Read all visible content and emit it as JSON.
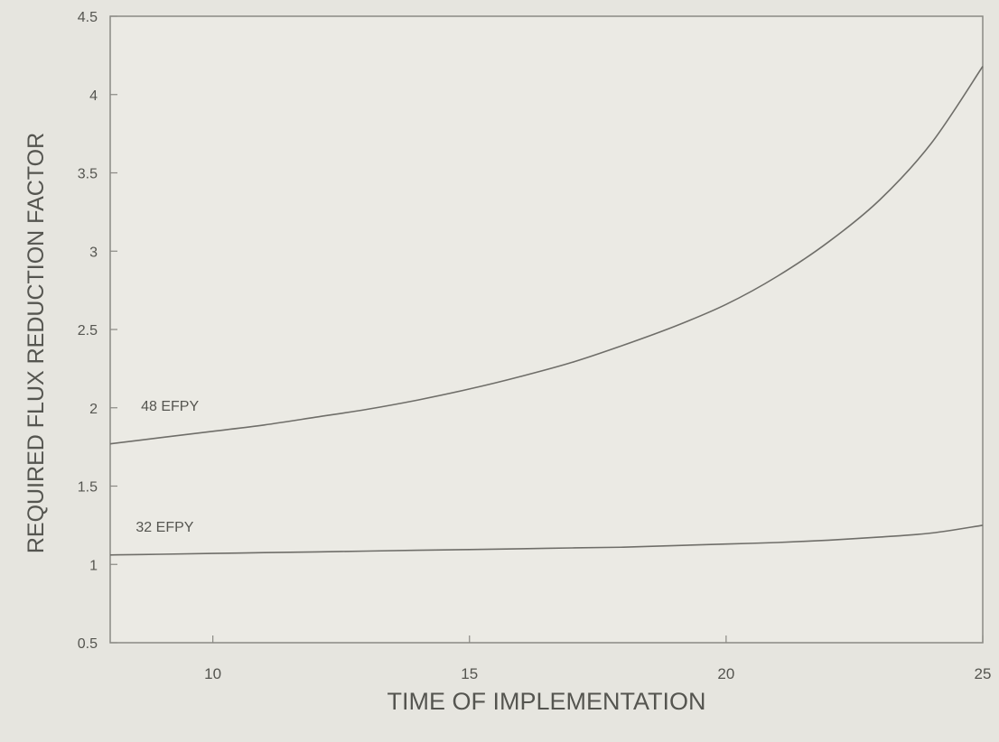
{
  "chart_data": {
    "type": "line",
    "title": "",
    "xlabel": "TIME OF IMPLEMENTATION",
    "ylabel": "REQUIRED FLUX REDUCTION FACTOR",
    "xlim": [
      8,
      25
    ],
    "ylim": [
      0.5,
      4.5
    ],
    "x_ticks": [
      10,
      15,
      20,
      25
    ],
    "y_ticks": [
      0.5,
      1,
      1.5,
      2,
      2.5,
      3,
      3.5,
      4,
      4.5
    ],
    "grid": false,
    "legend": "none",
    "colors": {
      "background": "#e6e5df",
      "plot_area": "#ebeae4",
      "line": "#6f6e69",
      "text": "#555550"
    },
    "series": [
      {
        "name": "48 EFPY",
        "x": [
          8,
          9,
          10,
          11,
          12,
          13,
          14,
          15,
          16,
          17,
          18,
          19,
          20,
          21,
          22,
          23,
          24,
          25
        ],
        "y": [
          1.77,
          1.81,
          1.85,
          1.89,
          1.94,
          1.99,
          2.05,
          2.12,
          2.2,
          2.29,
          2.4,
          2.52,
          2.66,
          2.84,
          3.06,
          3.33,
          3.69,
          4.18
        ]
      },
      {
        "name": "32 EFPY",
        "x": [
          8,
          9,
          10,
          11,
          12,
          13,
          14,
          15,
          16,
          17,
          18,
          19,
          20,
          21,
          22,
          23,
          24,
          25
        ],
        "y": [
          1.06,
          1.065,
          1.07,
          1.075,
          1.08,
          1.085,
          1.09,
          1.095,
          1.1,
          1.105,
          1.11,
          1.12,
          1.13,
          1.14,
          1.155,
          1.175,
          1.2,
          1.25
        ]
      }
    ],
    "annotations": [
      {
        "text": "48 EFPY",
        "x": 8.6,
        "y": 1.98
      },
      {
        "text": "32 EFPY",
        "x": 8.5,
        "y": 1.21
      }
    ]
  }
}
